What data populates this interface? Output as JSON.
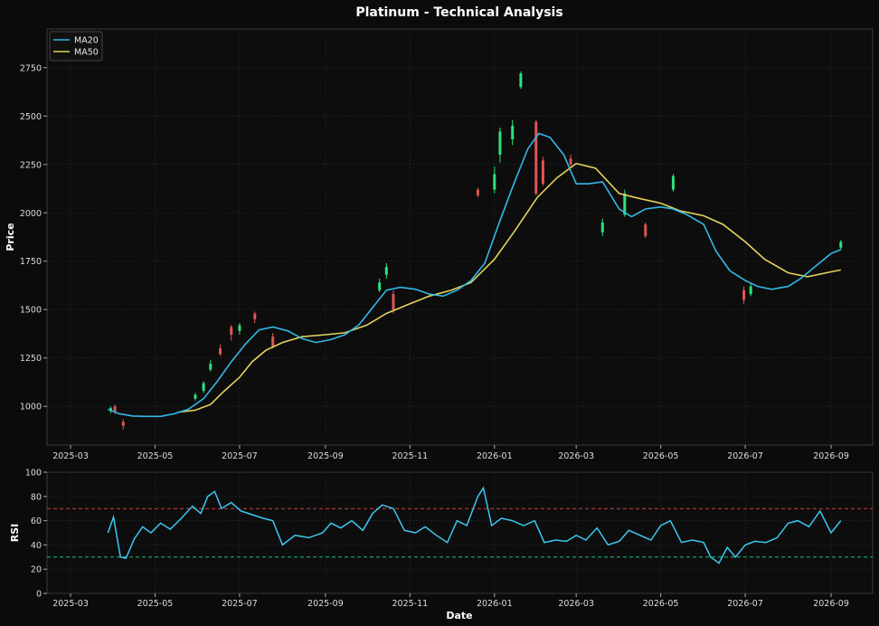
{
  "chart_data": {
    "type": "line",
    "title": "Platinum - Technical Analysis",
    "colors": {
      "background": "#0b0b0b",
      "panel": "#0d0d0d",
      "grid": "#2a2a2a",
      "up": "#2ee27a",
      "down": "#e05555",
      "ma20": "#33b8e6",
      "ma50": "#e3d35b",
      "rsi": "#3cc8f2",
      "overbought": "#d04040",
      "oversold": "#20c080"
    },
    "price_panel": {
      "ylabel": "Price",
      "ylim": [
        800,
        2950
      ],
      "yticks": [
        1000,
        1250,
        1500,
        1750,
        2000,
        2250,
        2500,
        2750
      ],
      "legend": [
        {
          "name": "MA20",
          "color": "#33b8e6"
        },
        {
          "name": "MA50",
          "color": "#e3d35b"
        }
      ],
      "legend_position": "top-left",
      "grid": true,
      "series": [
        {
          "name": "MA20",
          "x": [
            "2025-03-28",
            "2025-04-05",
            "2025-04-15",
            "2025-04-25",
            "2025-05-05",
            "2025-05-15",
            "2025-05-25",
            "2025-06-05",
            "2025-06-15",
            "2025-06-25",
            "2025-07-05",
            "2025-07-15",
            "2025-07-25",
            "2025-08-05",
            "2025-08-15",
            "2025-08-25",
            "2025-09-05",
            "2025-09-15",
            "2025-09-25",
            "2025-10-05",
            "2025-10-15",
            "2025-10-25",
            "2025-11-05",
            "2025-11-15",
            "2025-11-25",
            "2025-12-05",
            "2025-12-15",
            "2025-12-25",
            "2026-01-05",
            "2026-01-15",
            "2026-01-25",
            "2026-02-02",
            "2026-02-10",
            "2026-02-20",
            "2026-03-01",
            "2026-03-10",
            "2026-03-20",
            "2026-04-01",
            "2026-04-10",
            "2026-04-20",
            "2026-05-01",
            "2026-05-10",
            "2026-05-20",
            "2026-06-01",
            "2026-06-10",
            "2026-06-20",
            "2026-07-01",
            "2026-07-10",
            "2026-07-20",
            "2026-08-01",
            "2026-08-10",
            "2026-08-20",
            "2026-09-01",
            "2026-09-08"
          ],
          "y": [
            985,
            962,
            950,
            948,
            948,
            962,
            985,
            1040,
            1130,
            1230,
            1320,
            1395,
            1410,
            1390,
            1350,
            1330,
            1345,
            1370,
            1420,
            1510,
            1600,
            1615,
            1605,
            1580,
            1570,
            1600,
            1650,
            1740,
            1960,
            2150,
            2330,
            2410,
            2390,
            2300,
            2150,
            2150,
            2160,
            2020,
            1980,
            2020,
            2030,
            2020,
            1990,
            1940,
            1800,
            1700,
            1650,
            1620,
            1605,
            1620,
            1660,
            1720,
            1790,
            1810
          ]
        },
        {
          "name": "MA50",
          "x": [
            "2025-05-18",
            "2025-05-30",
            "2025-06-10",
            "2025-06-20",
            "2025-07-01",
            "2025-07-10",
            "2025-07-20",
            "2025-08-01",
            "2025-08-15",
            "2025-09-01",
            "2025-09-15",
            "2025-10-01",
            "2025-10-15",
            "2025-11-01",
            "2025-11-15",
            "2025-12-01",
            "2025-12-15",
            "2026-01-01",
            "2026-01-15",
            "2026-02-01",
            "2026-02-15",
            "2026-03-01",
            "2026-03-15",
            "2026-04-01",
            "2026-04-15",
            "2026-05-01",
            "2026-05-15",
            "2026-06-01",
            "2026-06-15",
            "2026-07-01",
            "2026-07-15",
            "2026-08-01",
            "2026-08-15",
            "2026-09-01",
            "2026-09-08"
          ],
          "y": [
            970,
            980,
            1010,
            1080,
            1150,
            1230,
            1290,
            1330,
            1360,
            1370,
            1380,
            1420,
            1480,
            1530,
            1570,
            1600,
            1640,
            1760,
            1900,
            2080,
            2180,
            2255,
            2230,
            2100,
            2075,
            2050,
            2010,
            1985,
            1940,
            1850,
            1760,
            1690,
            1670,
            1695,
            1705
          ]
        }
      ],
      "candles": [
        {
          "x": "2025-03-30",
          "open": 975,
          "close": 990,
          "high": 1000,
          "low": 965
        },
        {
          "x": "2025-04-02",
          "open": 1000,
          "close": 970,
          "high": 1010,
          "low": 960
        },
        {
          "x": "2025-04-08",
          "open": 920,
          "close": 900,
          "high": 935,
          "low": 880
        },
        {
          "x": "2025-05-30",
          "open": 1040,
          "close": 1060,
          "high": 1070,
          "low": 1030
        },
        {
          "x": "2025-06-05",
          "open": 1080,
          "close": 1120,
          "high": 1130,
          "low": 1070
        },
        {
          "x": "2025-06-10",
          "open": 1190,
          "close": 1220,
          "high": 1240,
          "low": 1180
        },
        {
          "x": "2025-06-17",
          "open": 1300,
          "close": 1270,
          "high": 1320,
          "low": 1260
        },
        {
          "x": "2025-06-25",
          "open": 1410,
          "close": 1370,
          "high": 1420,
          "low": 1340
        },
        {
          "x": "2025-07-01",
          "open": 1390,
          "close": 1420,
          "high": 1430,
          "low": 1370
        },
        {
          "x": "2025-07-12",
          "open": 1480,
          "close": 1450,
          "high": 1490,
          "low": 1430
        },
        {
          "x": "2025-07-25",
          "open": 1360,
          "close": 1310,
          "high": 1380,
          "low": 1300
        },
        {
          "x": "2025-10-10",
          "open": 1600,
          "close": 1640,
          "high": 1660,
          "low": 1590
        },
        {
          "x": "2025-10-15",
          "open": 1680,
          "close": 1720,
          "high": 1740,
          "low": 1660
        },
        {
          "x": "2025-10-20",
          "open": 1580,
          "close": 1500,
          "high": 1600,
          "low": 1480
        },
        {
          "x": "2025-12-20",
          "open": 2120,
          "close": 2090,
          "high": 2130,
          "low": 2080
        },
        {
          "x": "2026-01-01",
          "open": 2120,
          "close": 2200,
          "high": 2240,
          "low": 2100
        },
        {
          "x": "2026-01-05",
          "open": 2300,
          "close": 2420,
          "high": 2440,
          "low": 2260
        },
        {
          "x": "2026-01-14",
          "open": 2380,
          "close": 2450,
          "high": 2480,
          "low": 2350
        },
        {
          "x": "2026-01-20",
          "open": 2650,
          "close": 2720,
          "high": 2730,
          "low": 2640
        },
        {
          "x": "2026-01-31",
          "open": 2470,
          "close": 2100,
          "high": 2480,
          "low": 2090
        },
        {
          "x": "2026-02-05",
          "open": 2270,
          "close": 2150,
          "high": 2290,
          "low": 2140
        },
        {
          "x": "2026-02-25",
          "open": 2280,
          "close": 2250,
          "high": 2300,
          "low": 2240
        },
        {
          "x": "2026-03-20",
          "open": 1900,
          "close": 1950,
          "high": 1970,
          "low": 1880
        },
        {
          "x": "2026-04-05",
          "open": 1990,
          "close": 2100,
          "high": 2120,
          "low": 1980
        },
        {
          "x": "2026-04-20",
          "open": 1940,
          "close": 1880,
          "high": 1950,
          "low": 1870
        },
        {
          "x": "2026-05-10",
          "open": 2120,
          "close": 2190,
          "high": 2200,
          "low": 2110
        },
        {
          "x": "2026-06-30",
          "open": 1600,
          "close": 1550,
          "high": 1620,
          "low": 1530
        },
        {
          "x": "2026-07-05",
          "open": 1580,
          "close": 1620,
          "high": 1640,
          "low": 1570
        },
        {
          "x": "2026-09-08",
          "open": 1820,
          "close": 1850,
          "high": 1860,
          "low": 1810
        }
      ]
    },
    "rsi_panel": {
      "ylabel": "RSI",
      "ylim": [
        0,
        100
      ],
      "yticks": [
        0,
        20,
        40,
        60,
        80,
        100
      ],
      "overbought": 70,
      "oversold": 30,
      "grid": true,
      "series": {
        "name": "RSI",
        "x": [
          "2025-03-28",
          "2025-04-01",
          "2025-04-06",
          "2025-04-10",
          "2025-04-16",
          "2025-04-22",
          "2025-04-28",
          "2025-05-05",
          "2025-05-12",
          "2025-05-20",
          "2025-05-28",
          "2025-06-03",
          "2025-06-08",
          "2025-06-13",
          "2025-06-18",
          "2025-06-25",
          "2025-07-02",
          "2025-07-10",
          "2025-07-18",
          "2025-07-25",
          "2025-08-01",
          "2025-08-10",
          "2025-08-20",
          "2025-08-30",
          "2025-09-05",
          "2025-09-12",
          "2025-09-20",
          "2025-09-28",
          "2025-10-05",
          "2025-10-12",
          "2025-10-20",
          "2025-10-28",
          "2025-11-05",
          "2025-11-12",
          "2025-11-20",
          "2025-11-28",
          "2025-12-05",
          "2025-12-12",
          "2025-12-20",
          "2025-12-24",
          "2025-12-30",
          "2026-01-06",
          "2026-01-14",
          "2026-01-22",
          "2026-01-30",
          "2026-02-06",
          "2026-02-14",
          "2026-02-22",
          "2026-03-01",
          "2026-03-08",
          "2026-03-16",
          "2026-03-24",
          "2026-04-01",
          "2026-04-08",
          "2026-04-16",
          "2026-04-24",
          "2026-05-01",
          "2026-05-08",
          "2026-05-16",
          "2026-05-24",
          "2026-06-01",
          "2026-06-06",
          "2026-06-12",
          "2026-06-18",
          "2026-06-24",
          "2026-07-01",
          "2026-07-08",
          "2026-07-16",
          "2026-07-24",
          "2026-08-01",
          "2026-08-08",
          "2026-08-16",
          "2026-08-24",
          "2026-09-01",
          "2026-09-08"
        ],
        "y": [
          50,
          63,
          30,
          29,
          45,
          55,
          50,
          58,
          53,
          62,
          72,
          66,
          80,
          84,
          70,
          75,
          68,
          65,
          62,
          60,
          40,
          48,
          46,
          50,
          58,
          54,
          60,
          52,
          66,
          73,
          70,
          52,
          50,
          55,
          48,
          42,
          60,
          56,
          80,
          87,
          56,
          62,
          60,
          56,
          60,
          42,
          44,
          43,
          48,
          44,
          54,
          40,
          43,
          52,
          48,
          44,
          56,
          60,
          42,
          44,
          42,
          30,
          25,
          38,
          30,
          40,
          43,
          42,
          46,
          58,
          60,
          55,
          68,
          50,
          60
        ]
      }
    },
    "xlabel": "Date",
    "xticks": [
      "2025-03",
      "2025-05",
      "2025-07",
      "2025-09",
      "2025-11",
      "2026-01",
      "2026-03",
      "2026-05",
      "2026-07",
      "2026-09"
    ],
    "xlim": [
      "2025-02-12",
      "2026-10-01"
    ]
  }
}
